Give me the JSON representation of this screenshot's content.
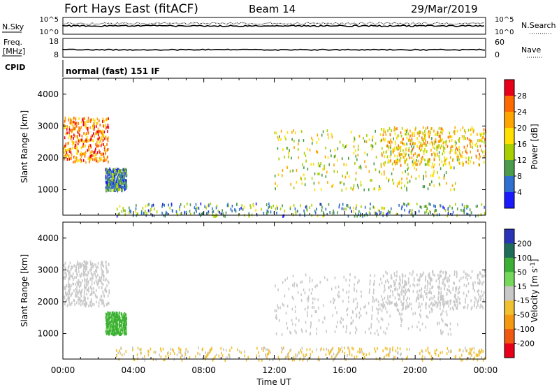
{
  "header": {
    "station": "Fort Hays East (fitACF)",
    "beam": "Beam 14",
    "date": "29/Mar/2019"
  },
  "top_panels": {
    "nsky": {
      "label": "N.Sky",
      "ticks": [
        "10^5",
        "10^0"
      ]
    },
    "nsearch": {
      "label": "N.Search",
      "ticks": [
        "10^5",
        "10^0"
      ]
    },
    "freq": {
      "label_line1": "Freq.",
      "label_line2": "[MHz]",
      "ticks": [
        "18",
        "8"
      ]
    },
    "nave": {
      "label": "Nave",
      "ticks": [
        "60",
        "0"
      ]
    },
    "cpid": {
      "label": "CPID",
      "value": "normal (fast) 151 IF"
    }
  },
  "x_axis": {
    "label": "Time UT",
    "ticks": [
      "00:00",
      "04:00",
      "08:00",
      "12:00",
      "16:00",
      "20:00",
      "00:00"
    ]
  },
  "power_colorbar": {
    "label": "Power [dB]",
    "ticks": [
      "28",
      "24",
      "20",
      "16",
      "12",
      "8",
      "4"
    ],
    "colors": [
      "#e8001a",
      "#ff6a00",
      "#ffa500",
      "#ffe000",
      "#a8d000",
      "#4c9a4c",
      "#2f6fd0",
      "#1a1aff"
    ]
  },
  "velocity_colorbar": {
    "label": "Velocity [m s^-1]",
    "ticks": [
      "200",
      "100",
      "50",
      "15",
      "-15",
      "-50",
      "-100",
      "-200"
    ],
    "colors": [
      "#2a34b8",
      "#1f6c5a",
      "#3cb034",
      "#76d85a",
      "#c8c8c8",
      "#f0c030",
      "#f59a10",
      "#ef5a10",
      "#e8001a"
    ]
  },
  "chart_data": [
    {
      "type": "heatmap",
      "name": "power-panel",
      "ylabel": "Slant Range [km]",
      "xlabel": "",
      "y_ticks": [
        "4000",
        "3000",
        "2000",
        "1000"
      ],
      "ylim": [
        200,
        4500
      ],
      "xlim": [
        0,
        24
      ],
      "echo_regions": [
        {
          "t": [
            0.0,
            2.6
          ],
          "range": [
            1900,
            3300
          ],
          "level": 22
        },
        {
          "t": [
            2.4,
            3.6
          ],
          "range": [
            1000,
            1700
          ],
          "level": 6
        },
        {
          "t": [
            12.0,
            22.5
          ],
          "range": [
            1000,
            2900
          ],
          "level": 14
        },
        {
          "t": [
            18.0,
            24.0
          ],
          "range": [
            1800,
            3000
          ],
          "level": 18
        },
        {
          "t": [
            3.0,
            24.0
          ],
          "range": [
            200,
            600
          ],
          "level": 8
        }
      ]
    },
    {
      "type": "heatmap",
      "name": "velocity-panel",
      "ylabel": "Slant Range [km]",
      "xlabel": "Time UT",
      "y_ticks": [
        "4000",
        "3000",
        "2000",
        "1000"
      ],
      "ylim": [
        200,
        4500
      ],
      "xlim": [
        0,
        24
      ],
      "echo_regions": [
        {
          "t": [
            0.0,
            2.6
          ],
          "range": [
            1900,
            3300
          ],
          "level": 0
        },
        {
          "t": [
            2.4,
            3.6
          ],
          "range": [
            1000,
            1700
          ],
          "level": 40
        },
        {
          "t": [
            12.0,
            22.5
          ],
          "range": [
            1000,
            2900
          ],
          "level": 0
        },
        {
          "t": [
            18.0,
            24.0
          ],
          "range": [
            1800,
            3000
          ],
          "level": 0
        },
        {
          "t": [
            3.0,
            24.0
          ],
          "range": [
            200,
            600
          ],
          "level": -20
        }
      ]
    }
  ]
}
